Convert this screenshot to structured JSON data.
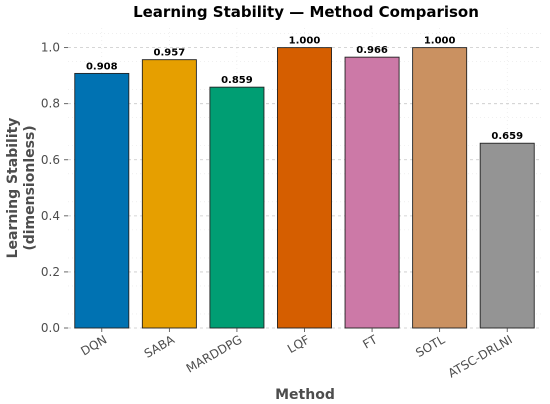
{
  "chart_data": {
    "type": "bar",
    "title": "Learning Stability — Method Comparison",
    "xlabel": "Method",
    "ylabel_line1": "Learning Stability",
    "ylabel_line2": "(dimensionless)",
    "categories": [
      "DQN",
      "SABA",
      "MARDDPG",
      "LQF",
      "FT",
      "SOTL",
      "ATSC-DRLNI"
    ],
    "values": [
      0.908,
      0.957,
      0.859,
      1.0,
      0.966,
      1.0,
      0.659
    ],
    "value_labels": [
      "0.908",
      "0.957",
      "0.859",
      "1.000",
      "0.966",
      "1.000",
      "0.659"
    ],
    "colors": [
      "#0072b2",
      "#e69f00",
      "#009e73",
      "#d55e00",
      "#cc79a7",
      "#ca9161",
      "#949494"
    ],
    "ylim": [
      0,
      1.07
    ],
    "yticks": [
      0.0,
      0.2,
      0.4,
      0.6,
      0.8,
      1.0
    ],
    "ytick_labels": [
      "0.0",
      "0.2",
      "0.4",
      "0.6",
      "0.8",
      "1.0"
    ],
    "grid": true
  }
}
